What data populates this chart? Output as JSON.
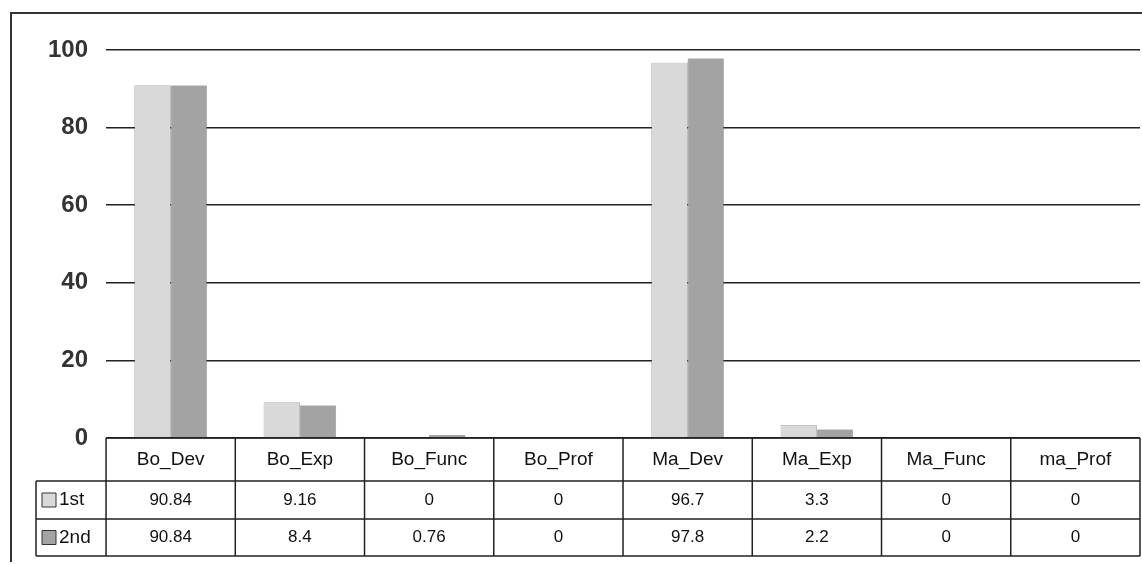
{
  "chart_data": {
    "type": "bar",
    "categories": [
      "Bo_Dev",
      "Bo_Exp",
      "Bo_Func",
      "Bo_Prof",
      "Ma_Dev",
      "Ma_Exp",
      "Ma_Func",
      "ma_Prof"
    ],
    "series": [
      {
        "name": "1st",
        "color": "#d9d9d9",
        "values": [
          90.84,
          9.16,
          0,
          0,
          96.7,
          3.3,
          0,
          0
        ]
      },
      {
        "name": "2nd",
        "color": "#a3a3a3",
        "values": [
          90.84,
          8.4,
          0.76,
          0,
          97.8,
          2.2,
          0,
          0
        ]
      }
    ],
    "ylim": [
      0,
      100
    ],
    "yticks": [
      0,
      20,
      40,
      60,
      80,
      100
    ],
    "grid": "y",
    "legend": "bottom",
    "data_labels": true
  }
}
